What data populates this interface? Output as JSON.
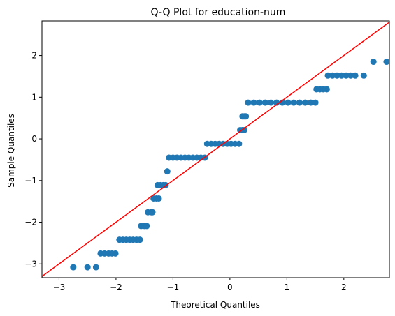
{
  "chart_data": {
    "type": "scatter",
    "title": "Q-Q Plot for education-num",
    "xlabel": "Theoretical Quantiles",
    "ylabel": "Sample Quantiles",
    "xlim": [
      -3.3,
      2.8
    ],
    "ylim": [
      -3.33,
      2.83
    ],
    "xticks": [
      -3,
      -2,
      -1,
      0,
      1,
      2
    ],
    "yticks": [
      -3,
      -2,
      -1,
      0,
      1,
      2
    ],
    "xtick_labels": [
      "−3",
      "−2",
      "−1",
      "0",
      "1",
      "2"
    ],
    "ytick_labels": [
      "−3",
      "−2",
      "−1",
      "0",
      "1",
      "2"
    ],
    "grid": false,
    "point_color": "#1f77b4",
    "line_color": "#ff0000",
    "reference_line": {
      "slope": 1,
      "intercept": 0
    },
    "series": [
      {
        "x": [
          -2.75,
          -2.5,
          -2.35,
          -2.27,
          -2.2,
          -2.13,
          -2.07,
          -2.01,
          -1.94,
          -1.88,
          -1.82,
          -1.76,
          -1.7,
          -1.64,
          -1.58,
          -1.56,
          -1.5,
          -1.46,
          -1.44,
          -1.38,
          -1.36,
          -1.34,
          -1.29,
          -1.25,
          -1.27,
          -1.22,
          -1.17,
          -1.13,
          -1.1,
          -1.07,
          -1.0,
          -0.93,
          -0.86,
          -0.79,
          -0.72,
          -0.65,
          -0.58,
          -0.51,
          -0.44,
          -0.4,
          -0.33,
          -0.26,
          -0.19,
          -0.12,
          -0.05,
          0.02,
          0.09,
          0.16,
          0.18,
          0.22,
          0.25,
          0.22,
          0.25,
          0.28,
          0.32,
          0.42,
          0.52,
          0.62,
          0.72,
          0.82,
          0.92,
          1.02,
          1.12,
          1.22,
          1.32,
          1.42,
          1.5,
          1.52,
          1.58,
          1.64,
          1.7,
          1.72,
          1.8,
          1.88,
          1.96,
          2.04,
          2.12,
          2.2,
          2.35,
          2.52,
          2.75
        ],
        "y": [
          -3.08,
          -3.08,
          -3.08,
          -2.75,
          -2.75,
          -2.75,
          -2.75,
          -2.75,
          -2.42,
          -2.42,
          -2.42,
          -2.42,
          -2.42,
          -2.42,
          -2.42,
          -2.09,
          -2.09,
          -2.09,
          -1.76,
          -1.76,
          -1.76,
          -1.43,
          -1.43,
          -1.43,
          -1.11,
          -1.11,
          -1.11,
          -1.11,
          -0.78,
          -0.45,
          -0.45,
          -0.45,
          -0.45,
          -0.45,
          -0.45,
          -0.45,
          -0.45,
          -0.45,
          -0.45,
          -0.12,
          -0.12,
          -0.12,
          -0.12,
          -0.12,
          -0.12,
          -0.12,
          -0.12,
          -0.12,
          0.21,
          0.21,
          0.21,
          0.54,
          0.54,
          0.54,
          0.87,
          0.87,
          0.87,
          0.87,
          0.87,
          0.87,
          0.87,
          0.87,
          0.87,
          0.87,
          0.87,
          0.87,
          0.87,
          1.19,
          1.19,
          1.19,
          1.19,
          1.52,
          1.52,
          1.52,
          1.52,
          1.52,
          1.52,
          1.52,
          1.52,
          1.85,
          1.85
        ]
      }
    ]
  }
}
